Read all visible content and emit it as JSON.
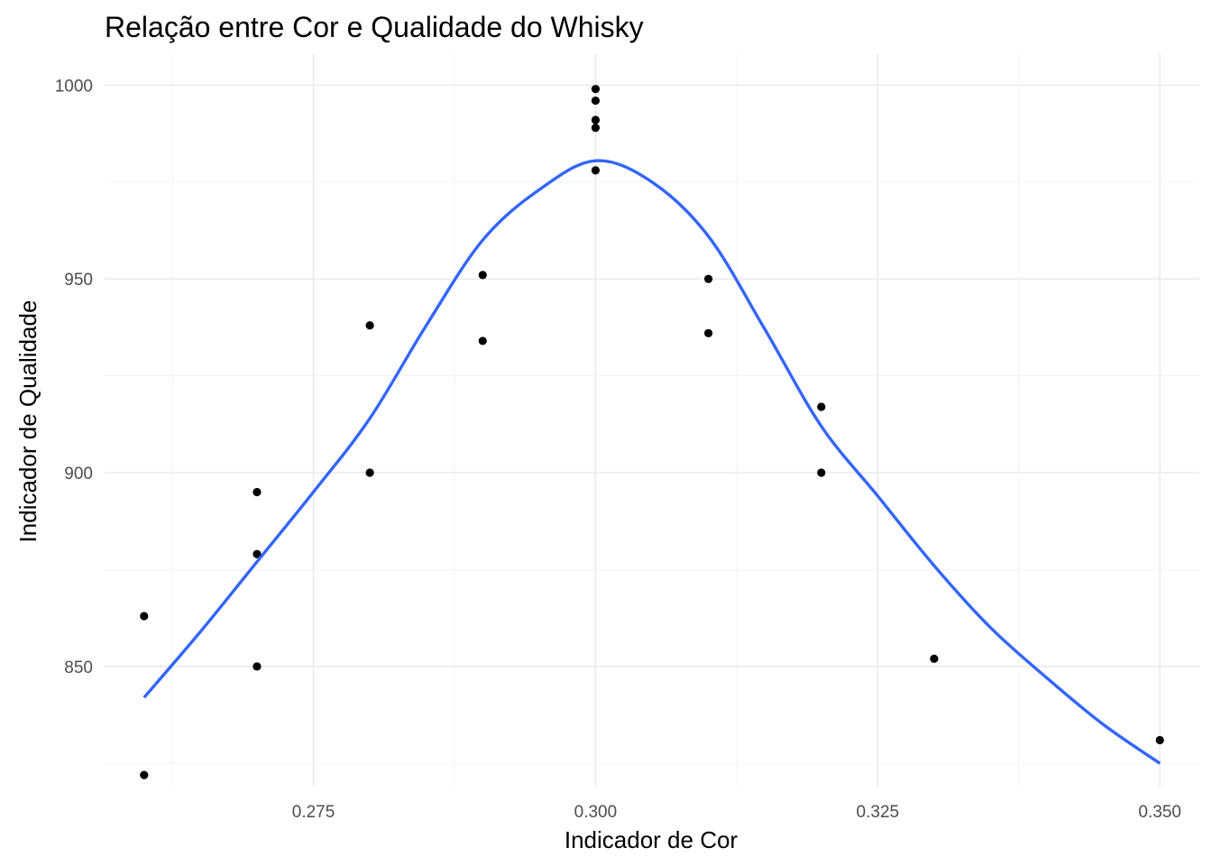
{
  "chart_data": {
    "type": "scatter",
    "title": "Relação entre Cor e Qualidade do Whisky",
    "xlabel": "Indicador de Cor",
    "ylabel": "Indicador de Qualidade",
    "xlim": [
      0.2565,
      0.3535
    ],
    "ylim": [
      819,
      1008
    ],
    "x_ticks": [
      0.275,
      0.3,
      0.325,
      0.35
    ],
    "x_tick_labels": [
      "0.275",
      "0.300",
      "0.325",
      "0.350"
    ],
    "y_ticks": [
      850,
      900,
      950,
      1000
    ],
    "y_tick_labels": [
      "850",
      "900",
      "950",
      "1000"
    ],
    "grid": true,
    "legend": "none",
    "point_color": "#000000",
    "smooth_color": "#3366ff",
    "points": [
      {
        "x": 0.26,
        "y": 863
      },
      {
        "x": 0.26,
        "y": 822
      },
      {
        "x": 0.27,
        "y": 895
      },
      {
        "x": 0.27,
        "y": 879
      },
      {
        "x": 0.27,
        "y": 850
      },
      {
        "x": 0.28,
        "y": 938
      },
      {
        "x": 0.28,
        "y": 900
      },
      {
        "x": 0.29,
        "y": 951
      },
      {
        "x": 0.29,
        "y": 934
      },
      {
        "x": 0.3,
        "y": 999
      },
      {
        "x": 0.3,
        "y": 996
      },
      {
        "x": 0.3,
        "y": 991
      },
      {
        "x": 0.3,
        "y": 989
      },
      {
        "x": 0.3,
        "y": 978
      },
      {
        "x": 0.31,
        "y": 950
      },
      {
        "x": 0.31,
        "y": 936
      },
      {
        "x": 0.32,
        "y": 917
      },
      {
        "x": 0.32,
        "y": 900
      },
      {
        "x": 0.33,
        "y": 852
      },
      {
        "x": 0.35,
        "y": 831
      }
    ],
    "smooth_line": [
      {
        "x": 0.26,
        "y": 842
      },
      {
        "x": 0.265,
        "y": 859
      },
      {
        "x": 0.27,
        "y": 877
      },
      {
        "x": 0.275,
        "y": 895
      },
      {
        "x": 0.28,
        "y": 914
      },
      {
        "x": 0.285,
        "y": 938
      },
      {
        "x": 0.29,
        "y": 960
      },
      {
        "x": 0.295,
        "y": 973
      },
      {
        "x": 0.3,
        "y": 980.5
      },
      {
        "x": 0.305,
        "y": 975
      },
      {
        "x": 0.31,
        "y": 961
      },
      {
        "x": 0.315,
        "y": 937
      },
      {
        "x": 0.32,
        "y": 912
      },
      {
        "x": 0.325,
        "y": 894
      },
      {
        "x": 0.33,
        "y": 876
      },
      {
        "x": 0.335,
        "y": 860
      },
      {
        "x": 0.34,
        "y": 847
      },
      {
        "x": 0.345,
        "y": 835
      },
      {
        "x": 0.35,
        "y": 825
      }
    ]
  }
}
